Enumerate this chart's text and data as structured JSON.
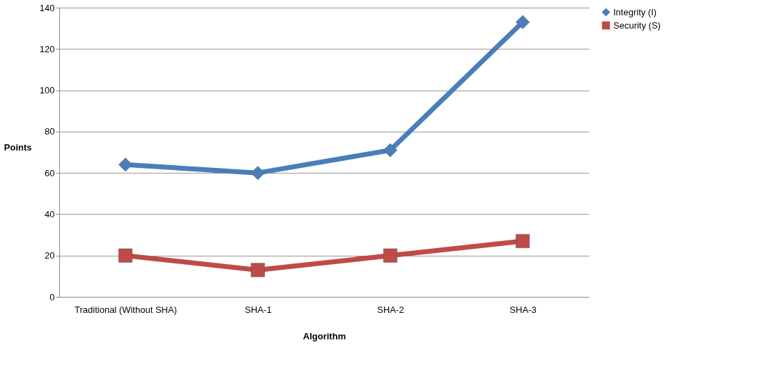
{
  "chart_data": {
    "type": "line",
    "xlabel": "Algorithm",
    "ylabel": "Points",
    "categories": [
      "Traditional (Without SHA)",
      "SHA-1",
      "SHA-2",
      "SHA-3"
    ],
    "series": [
      {
        "name": "Integrity (I)",
        "color": "#4a7ebb",
        "marker": "diamond",
        "values": [
          64,
          60,
          71,
          133
        ]
      },
      {
        "name": "Security (S)",
        "color": "#be4b48",
        "marker": "square",
        "values": [
          20,
          13,
          20,
          27
        ]
      }
    ],
    "ylim": [
      0,
      140
    ],
    "yticks": [
      0,
      20,
      40,
      60,
      80,
      100,
      120,
      140
    ],
    "grid": "y",
    "legend": "right",
    "line_style": "solid"
  }
}
